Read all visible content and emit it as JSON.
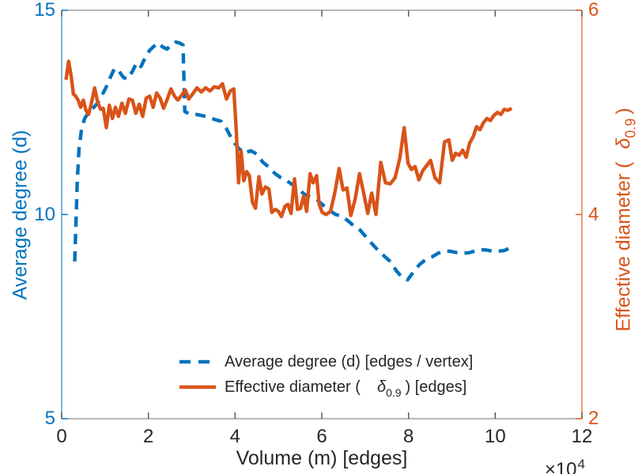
{
  "chart": {
    "x_axis": {
      "label": "Volume (m) [edges]",
      "tick_labels": [
        "0",
        "2",
        "4",
        "6",
        "8",
        "10",
        "12"
      ],
      "tick_values": [
        0,
        2,
        4,
        6,
        8,
        10,
        12
      ],
      "range": [
        0,
        12
      ],
      "multiplier_base": "×10",
      "multiplier_exp": "4",
      "text_color": "#262626",
      "line_color": "#8c8c8c",
      "tick_color": "#545454"
    },
    "left_axis": {
      "label": "Average degree (d)",
      "tick_labels": [
        "5",
        "10",
        "15"
      ],
      "tick_values": [
        5,
        10,
        15
      ],
      "range": [
        5,
        15
      ],
      "color": "#0072BD"
    },
    "right_axis": {
      "label_prefix": "Effective diameter (",
      "label_delta": "δ",
      "label_sub": "0.9",
      "label_suffix": ")",
      "tick_labels": [
        "2",
        "4",
        "6"
      ],
      "tick_values": [
        2,
        4,
        6
      ],
      "range": [
        2,
        6
      ],
      "color": "#D95319"
    },
    "legend": {
      "entry1": {
        "label": "Average degree (d) [edges / vertex]"
      },
      "entry2": {
        "prefix": "Effective diameter (",
        "delta": "δ",
        "sub": "0.9",
        "suffix": ") [edges]"
      }
    }
  },
  "chart_data": {
    "type": "line",
    "title": "",
    "xlabel": "Volume (m) [edges]",
    "x_multiplier": "×10^4",
    "xlim": [
      0,
      12
    ],
    "grid": false,
    "legend_position": "inside-bottom-center",
    "series": [
      {
        "name": "Average degree (d) [edges / vertex]",
        "axis": "left",
        "ylabel": "Average degree (d)",
        "ylim": [
          5,
          15
        ],
        "color": "#0072BD",
        "line_style": "dashed",
        "x": [
          0.3,
          0.33,
          0.36,
          0.4,
          0.46,
          0.53,
          0.62,
          0.72,
          0.82,
          0.92,
          1.02,
          1.12,
          1.22,
          1.33,
          1.43,
          1.53,
          1.63,
          1.73,
          1.83,
          1.93,
          2.03,
          2.13,
          2.23,
          2.33,
          2.43,
          2.53,
          2.63,
          2.72,
          2.8,
          2.84,
          2.95,
          3.1,
          3.25,
          3.4,
          3.55,
          3.68,
          3.8,
          3.94,
          4.08,
          4.22,
          4.36,
          4.5,
          4.64,
          4.78,
          4.92,
          5.06,
          5.2,
          5.34,
          5.48,
          5.62,
          5.76,
          5.9,
          6.04,
          6.18,
          6.32,
          6.46,
          6.6,
          6.74,
          6.88,
          7.02,
          7.16,
          7.3,
          7.44,
          7.58,
          7.72,
          7.86,
          7.98,
          8.12,
          8.26,
          8.4,
          8.54,
          8.68,
          8.82,
          8.96,
          9.1,
          9.24,
          9.38,
          9.52,
          9.66,
          9.8,
          9.94,
          10.08,
          10.22,
          10.36
        ],
        "y": [
          8.85,
          9.8,
          10.8,
          11.6,
          12.1,
          12.35,
          12.5,
          12.6,
          12.72,
          12.9,
          13.1,
          13.35,
          13.58,
          13.5,
          13.35,
          13.32,
          13.5,
          13.72,
          13.62,
          13.85,
          14.02,
          14.12,
          14.2,
          14.1,
          14.05,
          14.15,
          14.22,
          14.2,
          14.15,
          12.52,
          12.46,
          12.45,
          12.42,
          12.38,
          12.32,
          12.28,
          12.1,
          11.82,
          11.62,
          11.5,
          11.56,
          11.48,
          11.28,
          11.16,
          11.0,
          10.9,
          10.82,
          10.72,
          10.6,
          10.48,
          10.42,
          10.35,
          10.22,
          10.1,
          10.0,
          9.96,
          9.85,
          9.72,
          9.62,
          9.45,
          9.28,
          9.12,
          8.98,
          8.85,
          8.62,
          8.45,
          8.4,
          8.6,
          8.78,
          8.9,
          8.96,
          9.05,
          9.1,
          9.1,
          9.07,
          9.05,
          9.06,
          9.1,
          9.14,
          9.13,
          9.1,
          9.1,
          9.12,
          9.2
        ]
      },
      {
        "name": "Effective diameter (δ 0.9) [edges]",
        "axis": "right",
        "ylabel": "Effective diameter (δ 0.9)",
        "ylim": [
          2,
          6
        ],
        "color": "#D95319",
        "line_style": "solid",
        "x": [
          0.1,
          0.16,
          0.22,
          0.27,
          0.32,
          0.38,
          0.44,
          0.5,
          0.56,
          0.62,
          0.68,
          0.76,
          0.83,
          0.9,
          0.96,
          1.03,
          1.1,
          1.17,
          1.24,
          1.31,
          1.39,
          1.47,
          1.55,
          1.63,
          1.71,
          1.79,
          1.87,
          1.95,
          2.03,
          2.11,
          2.19,
          2.27,
          2.35,
          2.43,
          2.52,
          2.6,
          2.68,
          2.77,
          2.85,
          2.93,
          3.02,
          3.12,
          3.22,
          3.32,
          3.42,
          3.52,
          3.62,
          3.71,
          3.8,
          3.89,
          3.97,
          4.03,
          4.08,
          4.14,
          4.2,
          4.27,
          4.33,
          4.4,
          4.47,
          4.55,
          4.62,
          4.7,
          4.78,
          4.85,
          4.93,
          5.0,
          5.07,
          5.15,
          5.22,
          5.29,
          5.37,
          5.44,
          5.51,
          5.58,
          5.65,
          5.73,
          5.8,
          5.88,
          5.94,
          6.01,
          6.1,
          6.2,
          6.3,
          6.4,
          6.49,
          6.58,
          6.67,
          6.77,
          6.87,
          6.97,
          7.06,
          7.15,
          7.25,
          7.36,
          7.47,
          7.58,
          7.69,
          7.8,
          7.9,
          7.99,
          8.07,
          8.15,
          8.24,
          8.33,
          8.42,
          8.51,
          8.61,
          8.72,
          8.83,
          8.93,
          9.01,
          9.09,
          9.17,
          9.25,
          9.33,
          9.41,
          9.49,
          9.57,
          9.65,
          9.73,
          9.81,
          9.89,
          9.97,
          10.05,
          10.13,
          10.21,
          10.29,
          10.38
        ],
        "y": [
          5.32,
          5.5,
          5.35,
          5.18,
          5.16,
          5.12,
          5.05,
          5.12,
          5.02,
          4.98,
          5.08,
          5.24,
          5.1,
          5.03,
          5.04,
          4.85,
          5.07,
          4.94,
          5.05,
          4.96,
          5.09,
          4.99,
          5.13,
          5.12,
          4.99,
          5.08,
          4.96,
          5.14,
          5.16,
          5.05,
          5.19,
          5.14,
          5.04,
          5.12,
          5.23,
          5.16,
          5.12,
          5.17,
          5.22,
          5.13,
          5.18,
          5.24,
          5.2,
          5.24,
          5.21,
          5.25,
          5.24,
          5.28,
          5.13,
          5.21,
          5.23,
          4.8,
          4.31,
          4.62,
          4.33,
          4.42,
          4.38,
          4.12,
          4.06,
          4.37,
          4.2,
          4.27,
          4.25,
          4.02,
          4.05,
          4.03,
          3.98,
          4.08,
          4.1,
          4.01,
          4.35,
          4.05,
          4.06,
          4.18,
          4.03,
          4.4,
          4.31,
          4.38,
          4.1,
          4.02,
          4.0,
          4.03,
          4.21,
          4.45,
          4.24,
          4.26,
          3.99,
          4.15,
          4.4,
          4.2,
          4.01,
          4.21,
          4.0,
          4.51,
          4.31,
          4.3,
          4.36,
          4.55,
          4.85,
          4.5,
          4.44,
          4.47,
          4.34,
          4.43,
          4.48,
          4.53,
          4.36,
          4.31,
          4.71,
          4.73,
          4.53,
          4.6,
          4.58,
          4.63,
          4.56,
          4.7,
          4.76,
          4.86,
          4.83,
          4.9,
          4.94,
          4.92,
          4.97,
          5.0,
          4.98,
          5.03,
          5.02,
          5.04
        ]
      }
    ]
  }
}
